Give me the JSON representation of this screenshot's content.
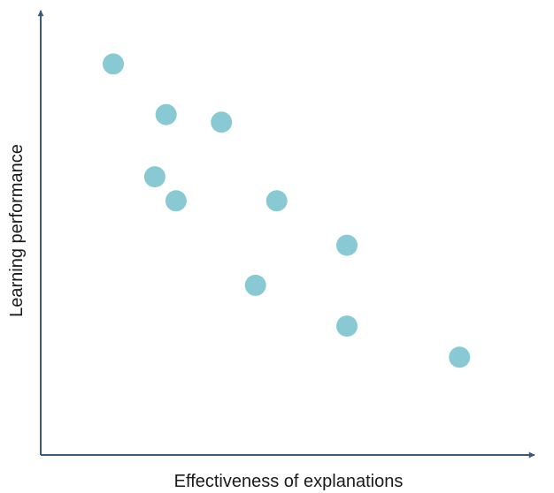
{
  "chart_data": {
    "type": "scatter",
    "title": "",
    "xlabel": "Effectiveness of explanations",
    "ylabel": "Learning performance",
    "xlim": [
      0,
      100
    ],
    "ylim": [
      0,
      100
    ],
    "grid": false,
    "legend": "none",
    "point_color": "#88c9d4",
    "axis_color": "#3c5a80",
    "series": [
      {
        "points": [
          {
            "x": 14.7,
            "y": 88.0
          },
          {
            "x": 25.4,
            "y": 76.6
          },
          {
            "x": 36.6,
            "y": 74.9
          },
          {
            "x": 23.1,
            "y": 62.6
          },
          {
            "x": 27.4,
            "y": 57.2
          },
          {
            "x": 47.8,
            "y": 57.2
          },
          {
            "x": 62.0,
            "y": 47.2
          },
          {
            "x": 43.5,
            "y": 38.2
          },
          {
            "x": 62.0,
            "y": 29.0
          },
          {
            "x": 84.8,
            "y": 22.0
          }
        ]
      }
    ]
  }
}
